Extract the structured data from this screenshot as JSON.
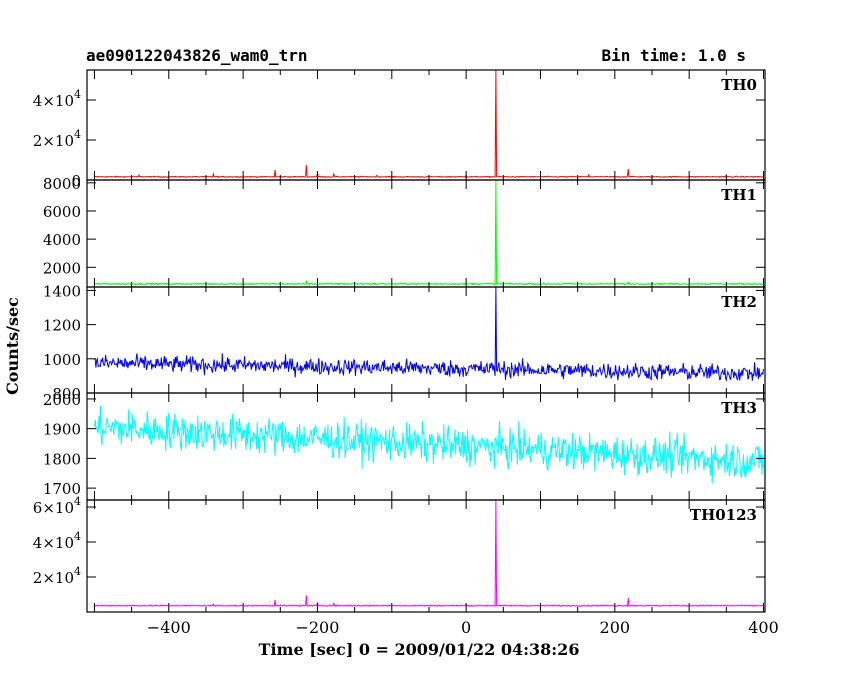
{
  "chart_data": {
    "type": "line",
    "title": "ae090122043826_wam0_trn",
    "bin_time_label": "Bin time: 1.0 s",
    "xlabel": "Time [sec] 0 = 2009/01/22 04:38:26",
    "ylabel": "Counts/sec",
    "xlim": [
      -510,
      402
    ],
    "xticks": [
      -400,
      -200,
      0,
      200,
      400
    ],
    "x_tick_labels": [
      "−400",
      "−200",
      "0",
      "200",
      "400"
    ],
    "grid": false,
    "panels": [
      {
        "name": "TH0",
        "color": "#ff0000",
        "ylim": [
          0,
          55000
        ],
        "yticks": [
          0,
          20000,
          40000
        ],
        "ytick_labels": [
          {
            "base": "0",
            "exp": ""
          },
          {
            "base": "2×10",
            "exp": "4"
          },
          {
            "base": "4×10",
            "exp": "4"
          }
        ],
        "baseline": 1600,
        "noise": 180,
        "trend": [
          0,
          0
        ],
        "peak": {
          "x": 40,
          "y": 55000
        },
        "spikes": [
          {
            "x": -257,
            "y": 5000
          },
          {
            "x": -215,
            "y": 7500
          },
          {
            "x": -200,
            "y": 3500
          },
          {
            "x": -178,
            "y": 3000
          },
          {
            "x": -340,
            "y": 3000
          },
          {
            "x": -440,
            "y": 2500
          },
          {
            "x": 0,
            "y": 2500
          },
          {
            "x": 218,
            "y": 5500
          },
          {
            "x": 165,
            "y": 2500
          },
          {
            "x": -120,
            "y": 2300
          },
          {
            "x": 350,
            "y": 2500
          }
        ]
      },
      {
        "name": "TH1",
        "color": "#00ff00",
        "ylim": [
          600,
          8200
        ],
        "yticks": [
          2000,
          4000,
          6000,
          8000
        ],
        "ytick_labels": [
          {
            "base": "2000",
            "exp": ""
          },
          {
            "base": "4000",
            "exp": ""
          },
          {
            "base": "6000",
            "exp": ""
          },
          {
            "base": "8000",
            "exp": ""
          }
        ],
        "baseline": 820,
        "noise": 35,
        "trend": [
          0,
          0
        ],
        "peak": {
          "x": 40,
          "y": 8200
        },
        "spikes": [
          {
            "x": -215,
            "y": 1000
          },
          {
            "x": 218,
            "y": 950
          }
        ]
      },
      {
        "name": "TH2",
        "color": "#0000ff",
        "ylim": [
          800,
          1420
        ],
        "yticks": [
          800,
          1000,
          1200,
          1400
        ],
        "ytick_labels": [
          {
            "base": "800",
            "exp": ""
          },
          {
            "base": "1000",
            "exp": ""
          },
          {
            "base": "1200",
            "exp": ""
          },
          {
            "base": "1400",
            "exp": ""
          }
        ],
        "baseline": 950,
        "noise": 35,
        "trend": [
          25,
          -35
        ],
        "peak": {
          "x": 40,
          "y": 1420
        },
        "spikes": []
      },
      {
        "name": "TH3",
        "color": "#00ffff",
        "ylim": [
          1660,
          2020
        ],
        "yticks": [
          1700,
          1800,
          1900,
          2000
        ],
        "ytick_labels": [
          {
            "base": "1700",
            "exp": ""
          },
          {
            "base": "1800",
            "exp": ""
          },
          {
            "base": "1900",
            "exp": ""
          },
          {
            "base": "2000",
            "exp": ""
          }
        ],
        "baseline": 1845,
        "noise": 45,
        "trend": [
          60,
          -55
        ],
        "peak": null,
        "spikes": []
      },
      {
        "name": "TH0123",
        "color": "#ff00ff",
        "ylim": [
          0,
          64000
        ],
        "yticks": [
          20000,
          40000,
          60000
        ],
        "ytick_labels": [
          {
            "base": "2×10",
            "exp": "4"
          },
          {
            "base": "4×10",
            "exp": "4"
          },
          {
            "base": "6×10",
            "exp": "4"
          }
        ],
        "baseline": 3600,
        "noise": 220,
        "trend": [
          0,
          0
        ],
        "peak": {
          "x": 40,
          "y": 64000
        },
        "spikes": [
          {
            "x": -257,
            "y": 7000
          },
          {
            "x": -215,
            "y": 9500
          },
          {
            "x": -200,
            "y": 5500
          },
          {
            "x": -178,
            "y": 5000
          },
          {
            "x": 0,
            "y": 4500
          },
          {
            "x": 218,
            "y": 8000
          },
          {
            "x": -340,
            "y": 4500
          }
        ]
      }
    ]
  }
}
